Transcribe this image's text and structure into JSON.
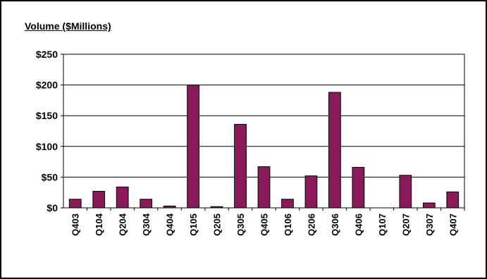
{
  "chart_data": {
    "type": "bar",
    "title": "Volume ($Millions)",
    "xlabel": "",
    "ylabel": "",
    "categories": [
      "Q403",
      "Q104",
      "Q204",
      "Q304",
      "Q404",
      "Q105",
      "Q205",
      "Q305",
      "Q405",
      "Q106",
      "Q206",
      "Q306",
      "Q406",
      "Q107",
      "Q207",
      "Q307",
      "Q407"
    ],
    "values": [
      14,
      27,
      34,
      14,
      3,
      200,
      2,
      136,
      67,
      14,
      52,
      188,
      66,
      0,
      53,
      8,
      26
    ],
    "ylim": [
      0,
      250
    ],
    "yticks": [
      0,
      50,
      100,
      150,
      200,
      250
    ],
    "ytick_labels": [
      "$0",
      "$50",
      "$100",
      "$150",
      "$200",
      "$250"
    ],
    "grid": true,
    "legend": "none",
    "bar_color": "#8b1a5a"
  }
}
